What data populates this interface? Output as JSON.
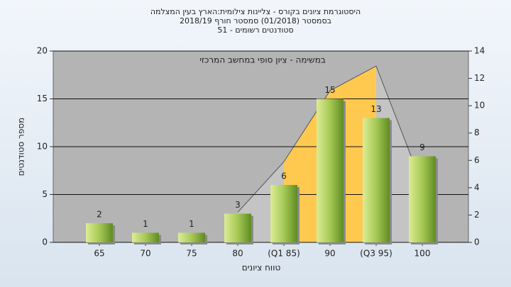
{
  "chart_data": {
    "type": "bar",
    "title": [
      "היסטוגרמת ציונים בקורס - צליינות צילומית:הארץ בעין המצלמה",
      "בסמסטר  (01/2018)  סמסטר חורף 2018/19",
      "סטודנטים רשומים - 51"
    ],
    "annotation": "במשימה - ציון סופי במחשב המרכזי",
    "x_label": "טווח ציונים",
    "y_label": "מספר סטודנטים",
    "categories": [
      "65",
      "70",
      "75",
      "80",
      "(Q1 85)",
      "90",
      "(Q3 95)",
      "100"
    ],
    "values": [
      2,
      1,
      1,
      3,
      6,
      15,
      13,
      9
    ],
    "area": {
      "axis": "y2",
      "values": [
        null,
        null,
        null,
        2.2,
        5.9,
        11.1,
        12.9,
        4.2
      ],
      "segment_colors": [
        "#c4c4c4",
        "#ffc94f",
        "#ffc94f",
        "#c4c4c4"
      ]
    },
    "ylim": [
      0,
      20
    ],
    "yticks": [
      0,
      5,
      10,
      15,
      20
    ],
    "y2lim": [
      0,
      14
    ],
    "y2ticks": [
      0,
      2,
      4,
      6,
      8,
      10,
      12,
      14
    ],
    "grid": true
  }
}
